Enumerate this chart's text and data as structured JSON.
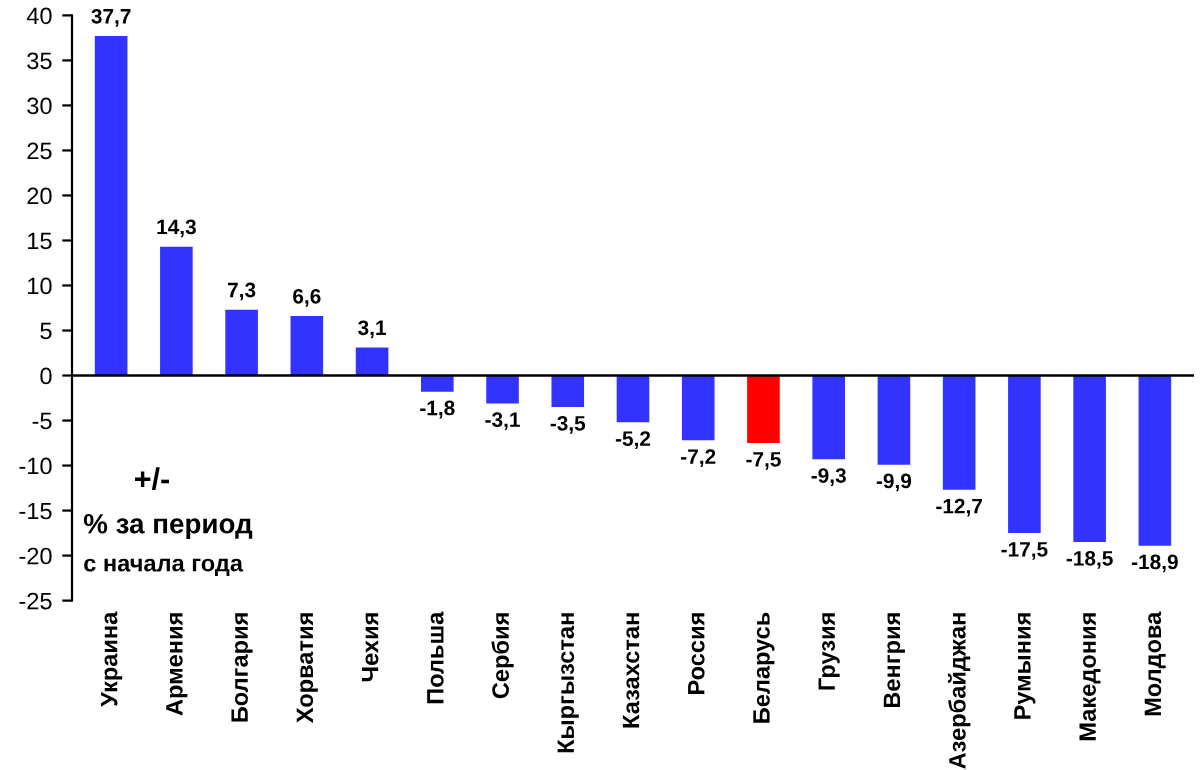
{
  "chart_data": {
    "type": "bar",
    "categories": [
      "Украина",
      "Армения",
      "Болгария",
      "Хорватия",
      "Чехия",
      "Польша",
      "Сербия",
      "Кыргызстан",
      "Казахстан",
      "Россия",
      "Беларусь",
      "Грузия",
      "Венгрия",
      "Азербайджан",
      "Румыния",
      "Македония",
      "Молдова"
    ],
    "values": [
      37.7,
      14.3,
      7.3,
      6.6,
      3.1,
      -1.8,
      -3.1,
      -3.5,
      -5.2,
      -7.2,
      -7.5,
      -9.3,
      -9.9,
      -12.7,
      -17.5,
      -18.5,
      -18.9
    ],
    "value_labels": [
      "37,7",
      "14,3",
      "7,3",
      "6,6",
      "3,1",
      "-1,8",
      "-3,1",
      "-3,5",
      "-5,2",
      "-7,2",
      "-7,5",
      "-9,3",
      "-9,9",
      "-12,7",
      "-17,5",
      "-18,5",
      "-18,9"
    ],
    "colors": [
      "#3333ff",
      "#3333ff",
      "#3333ff",
      "#3333ff",
      "#3333ff",
      "#3333ff",
      "#3333ff",
      "#3333ff",
      "#3333ff",
      "#3333ff",
      "#ff0000",
      "#3333ff",
      "#3333ff",
      "#3333ff",
      "#3333ff",
      "#3333ff",
      "#3333ff"
    ],
    "ylim": [
      -25,
      40
    ],
    "yticks": [
      -25,
      -20,
      -15,
      -10,
      -5,
      0,
      5,
      10,
      15,
      20,
      25,
      30,
      35,
      40
    ],
    "ref_lines": [
      {
        "axis": "y",
        "value": 0,
        "color": "#000000"
      }
    ],
    "annotations": [
      "+/-",
      "% за период",
      "с начала года"
    ],
    "grid": false,
    "legend": false
  }
}
